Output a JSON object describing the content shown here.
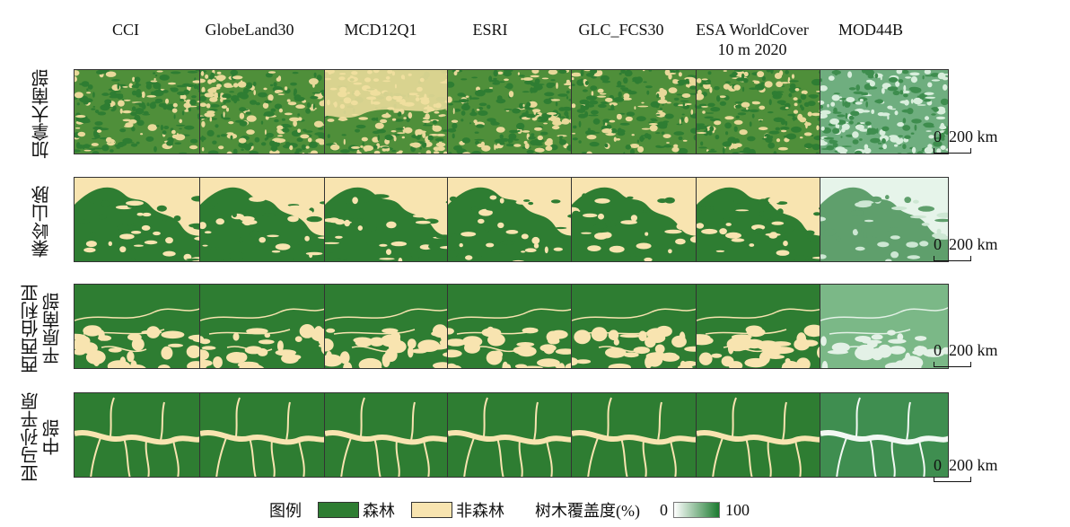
{
  "columns": [
    "CCI",
    "GlobeLand30",
    "MCD12Q1",
    "ESRI",
    "GLC_FCS30",
    "ESA WorldCover\n10 m 2020",
    "MOD44B"
  ],
  "rows": [
    {
      "label": "加拿大南部"
    },
    {
      "label": "秦岭山脉"
    },
    {
      "label": "西西伯利亚\n平原南部"
    },
    {
      "label": "亚马孙平原\n中部"
    }
  ],
  "scale_bar": {
    "zero": "0",
    "distance": "200 km"
  },
  "legend": {
    "title": "图例",
    "forest": "森林",
    "nonforest": "非森林",
    "cover_title": "树木覆盖度(%)",
    "cover_min": "0",
    "cover_max": "100"
  },
  "colors": {
    "forest": "#2e7d32",
    "nonforest": "#f8e4b0",
    "cover_high": "#1b7a2f",
    "cover_low": "#ffffff"
  }
}
